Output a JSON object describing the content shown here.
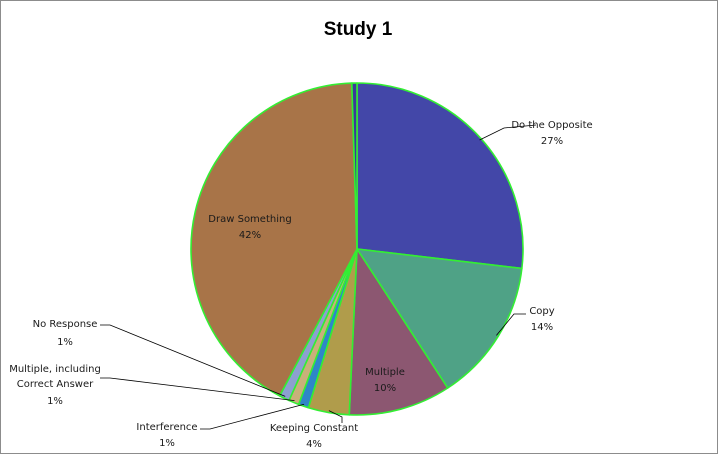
{
  "chart_data": {
    "type": "pie",
    "title": "Study 1",
    "slices": [
      {
        "name": "Do the  Opposite",
        "value": 27,
        "label": "27%",
        "color": "#4347a8"
      },
      {
        "name": "Copy",
        "value": 14,
        "label": "14%",
        "color": "#4fa286"
      },
      {
        "name": "Multiple",
        "value": 10,
        "label": "10%",
        "color": "#8c5771"
      },
      {
        "name": "Keeping Constant",
        "value": 4,
        "label": "4%",
        "color": "#b09c4b"
      },
      {
        "name": "Interference",
        "value": 1,
        "label": "1%",
        "color": "#2f86c8"
      },
      {
        "name": "Multiple, including Correct Answer",
        "value": 1,
        "label": "1%",
        "color": "#c8b07a"
      },
      {
        "name": "No Response",
        "value": 1,
        "label": "1%",
        "color": "#8ca0d0"
      },
      {
        "name": "Draw Something",
        "value": 42,
        "label": "42%",
        "color": "#a87448"
      },
      {
        "name": "",
        "value": 0.5,
        "label": "",
        "color": "#3a3a9a"
      }
    ],
    "slice_border_color": "#33ee33",
    "leader_line_color": "#000000"
  }
}
